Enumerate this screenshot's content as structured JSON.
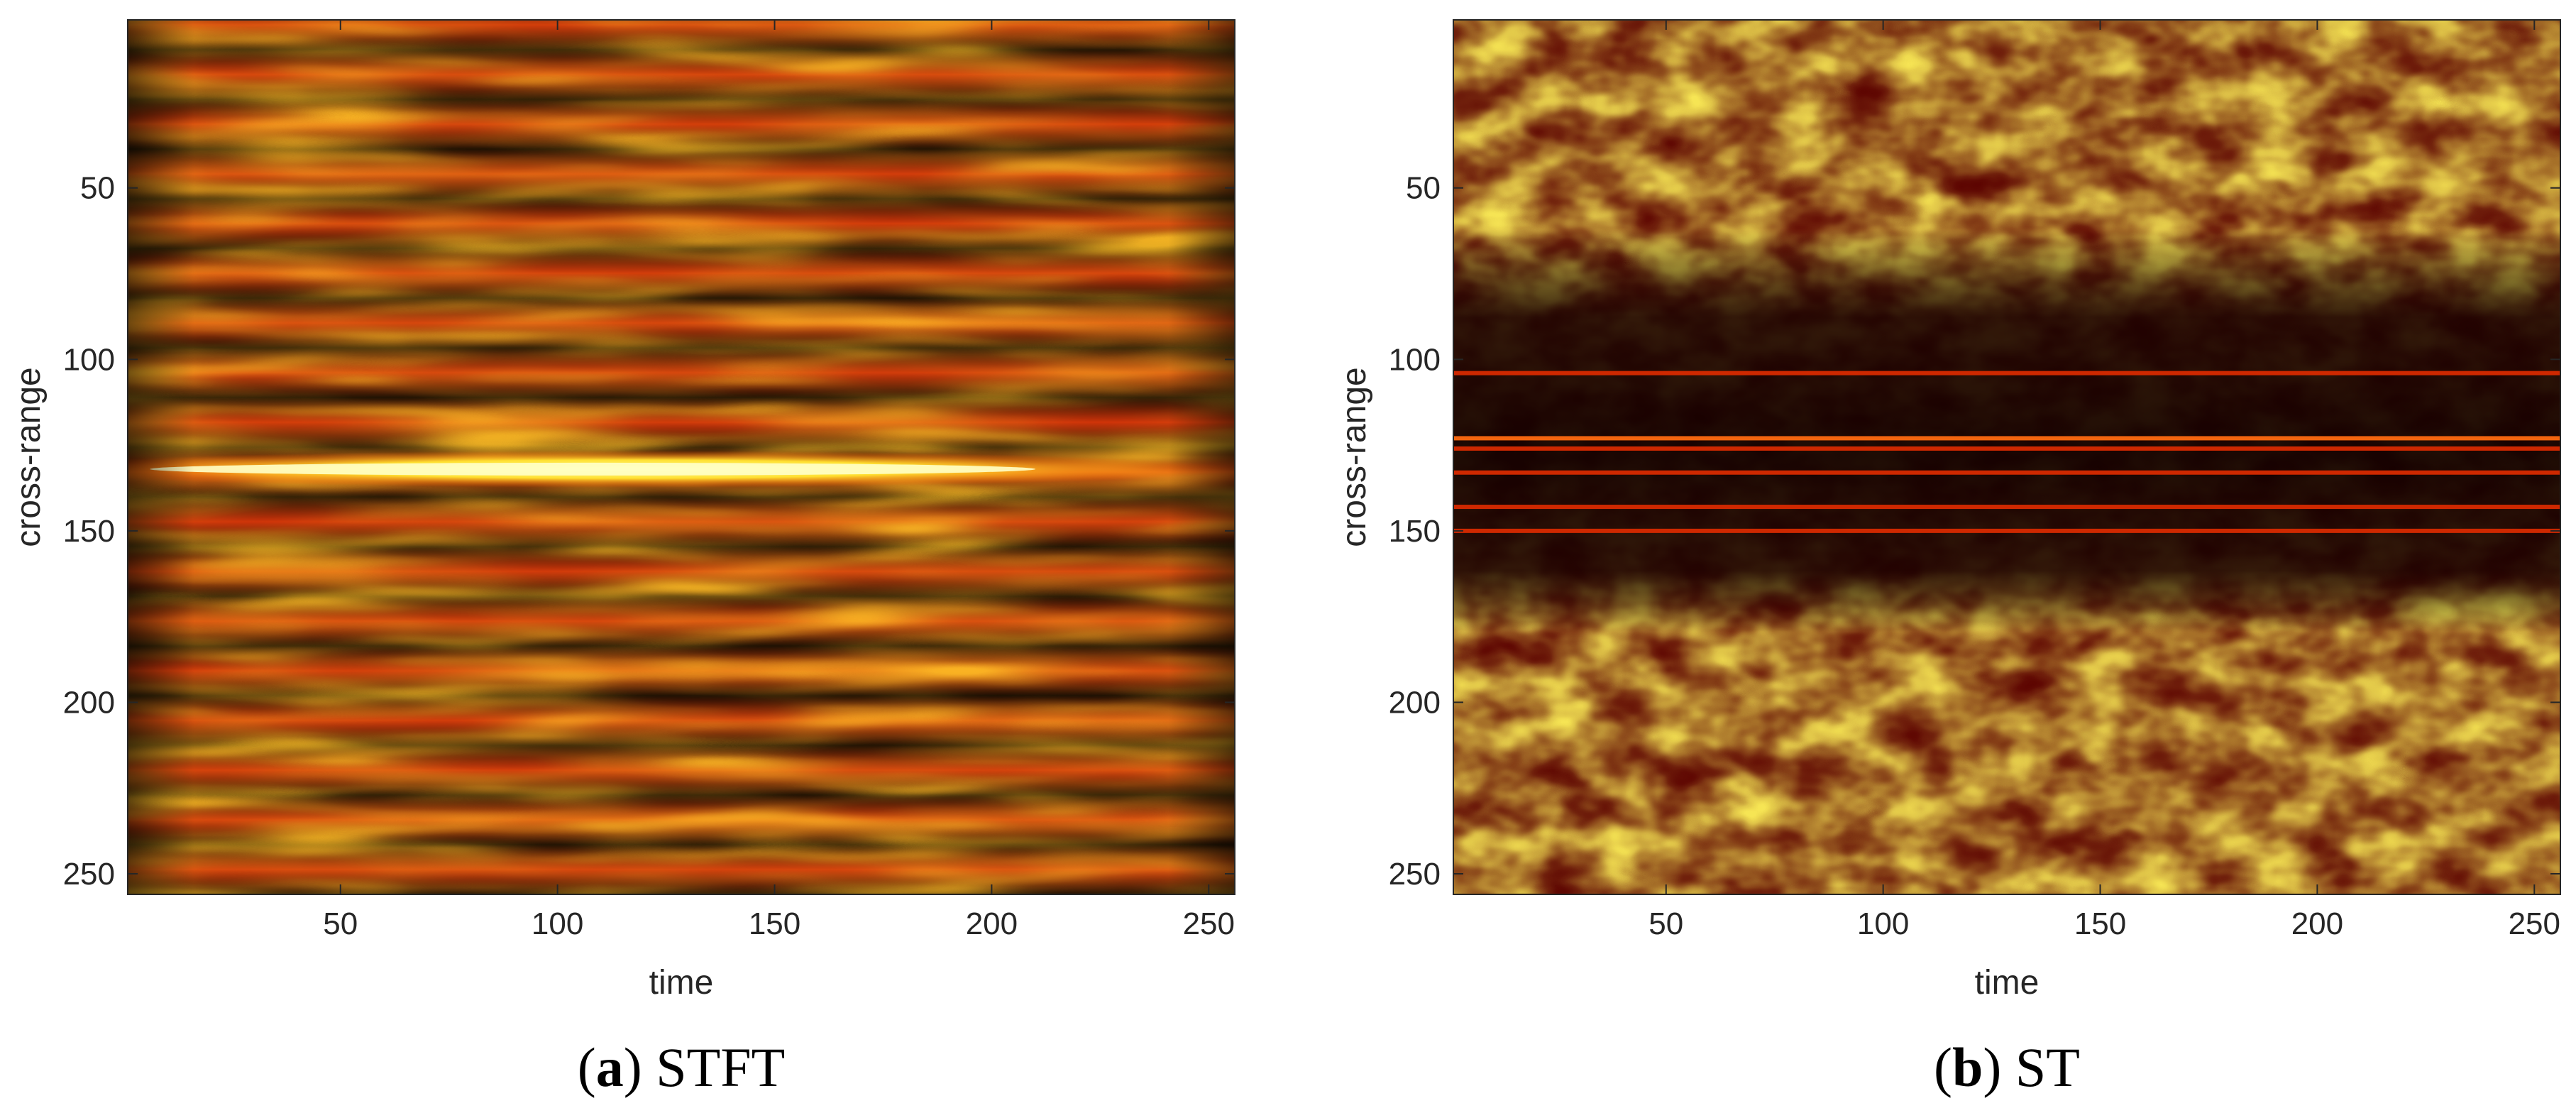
{
  "chart_data": [
    {
      "type": "heatmap",
      "panel_letter": "a",
      "caption": "STFT",
      "xlabel": "time",
      "ylabel": "cross-range",
      "xlim": [
        1,
        256
      ],
      "ylim": [
        1,
        256
      ],
      "y_reversed": true,
      "xticks": [
        50,
        100,
        150,
        200,
        250
      ],
      "yticks": [
        50,
        100,
        150,
        200,
        250
      ],
      "colormap": "hot",
      "grid": false,
      "pattern": "horizontal bands",
      "band_spacing": 14,
      "bright_ridge_y": 132
    },
    {
      "type": "heatmap",
      "panel_letter": "b",
      "caption": "ST",
      "xlabel": "time",
      "ylabel": "cross-range",
      "xlim": [
        1,
        256
      ],
      "ylim": [
        1,
        256
      ],
      "y_reversed": true,
      "xticks": [
        50,
        100,
        150,
        200,
        250
      ],
      "yticks": [
        50,
        100,
        150,
        200,
        250
      ],
      "colormap": "hot",
      "grid": false,
      "pattern": "blobs outside central bands",
      "thin_band_lines_y": [
        104,
        123,
        126,
        133,
        143,
        150
      ],
      "central_band_range_y": [
        95,
        160
      ]
    }
  ]
}
